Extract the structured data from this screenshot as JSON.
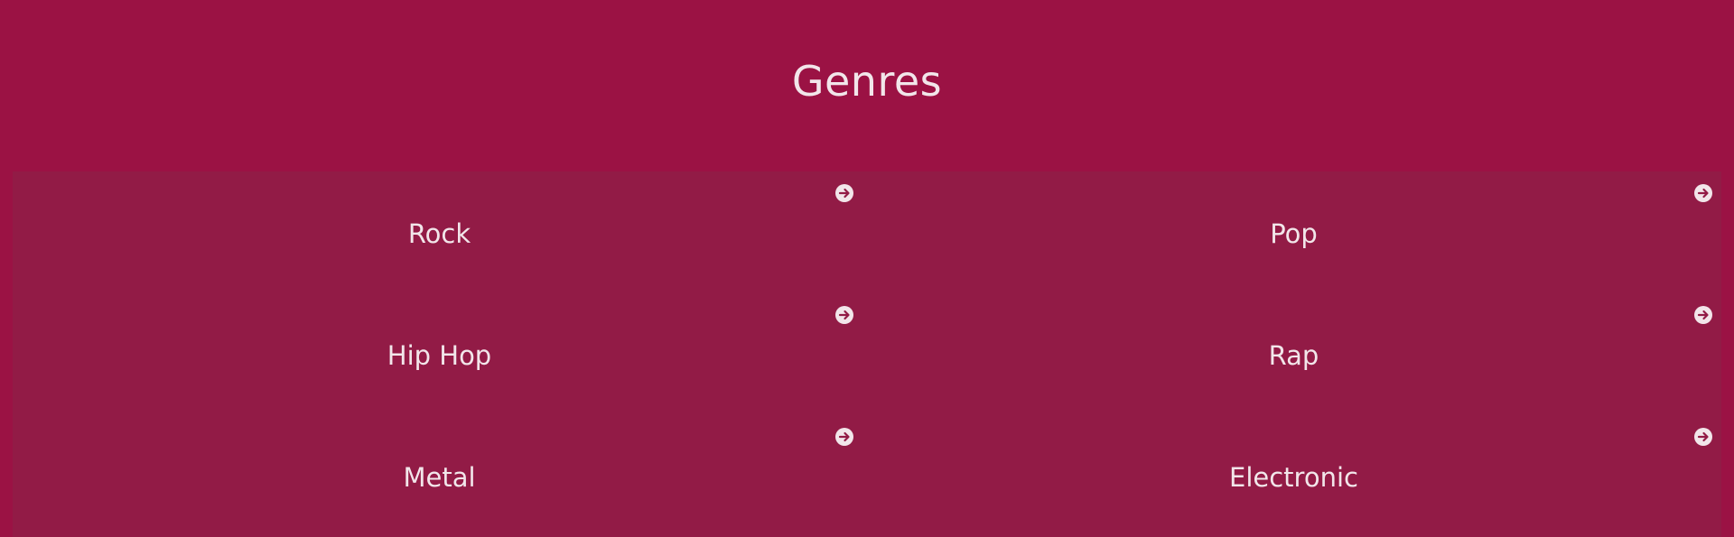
{
  "header": {
    "title": "Genres"
  },
  "genres": [
    {
      "label": "Rock"
    },
    {
      "label": "Pop"
    },
    {
      "label": "Hip Hop"
    },
    {
      "label": "Rap"
    },
    {
      "label": "Metal"
    },
    {
      "label": "Electronic"
    }
  ],
  "colors": {
    "background": "#9b1244",
    "panel": "#921b46",
    "text": "#f2e6ea"
  },
  "icons": {
    "card_action": "arrow-right-circle-icon"
  }
}
